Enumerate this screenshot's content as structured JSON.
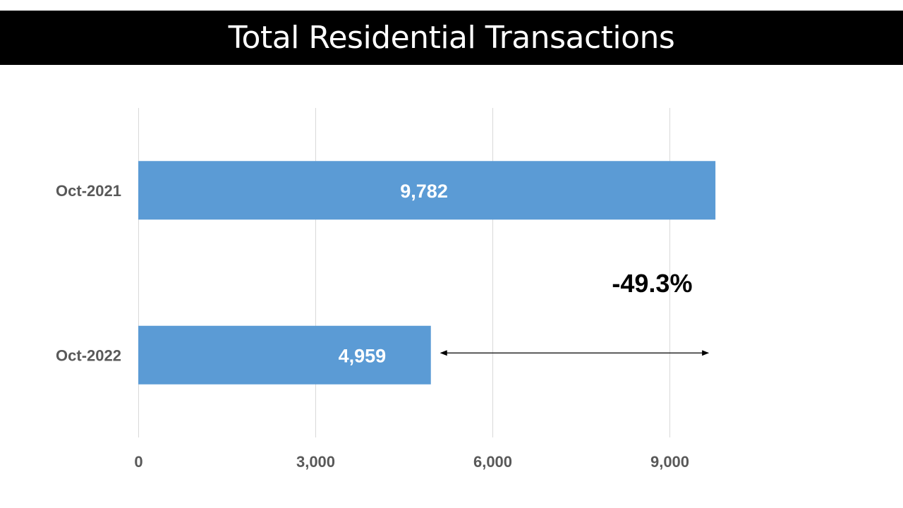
{
  "title": "Total Residential Transactions",
  "colors": {
    "bar": "#5B9BD5",
    "grid": "#D9D9D9",
    "title_bg": "#000000",
    "title_text": "#FFFFFF"
  },
  "chart_data": {
    "type": "bar",
    "orientation": "horizontal",
    "categories": [
      "Oct-2021",
      "Oct-2022"
    ],
    "values": [
      9782,
      4959
    ],
    "value_labels": [
      "9,782",
      "4,959"
    ],
    "xlim": [
      0,
      11000
    ],
    "xticks": [
      0,
      3000,
      6000,
      9000
    ],
    "xtick_labels": [
      "0",
      "3,000",
      "6,000",
      "9,000"
    ],
    "grid": true,
    "legend": "none",
    "annotation": {
      "text": "-49.3%",
      "arrow": "double-headed, spanning from the Oct-2022 value to the Oct-2021 value"
    }
  }
}
